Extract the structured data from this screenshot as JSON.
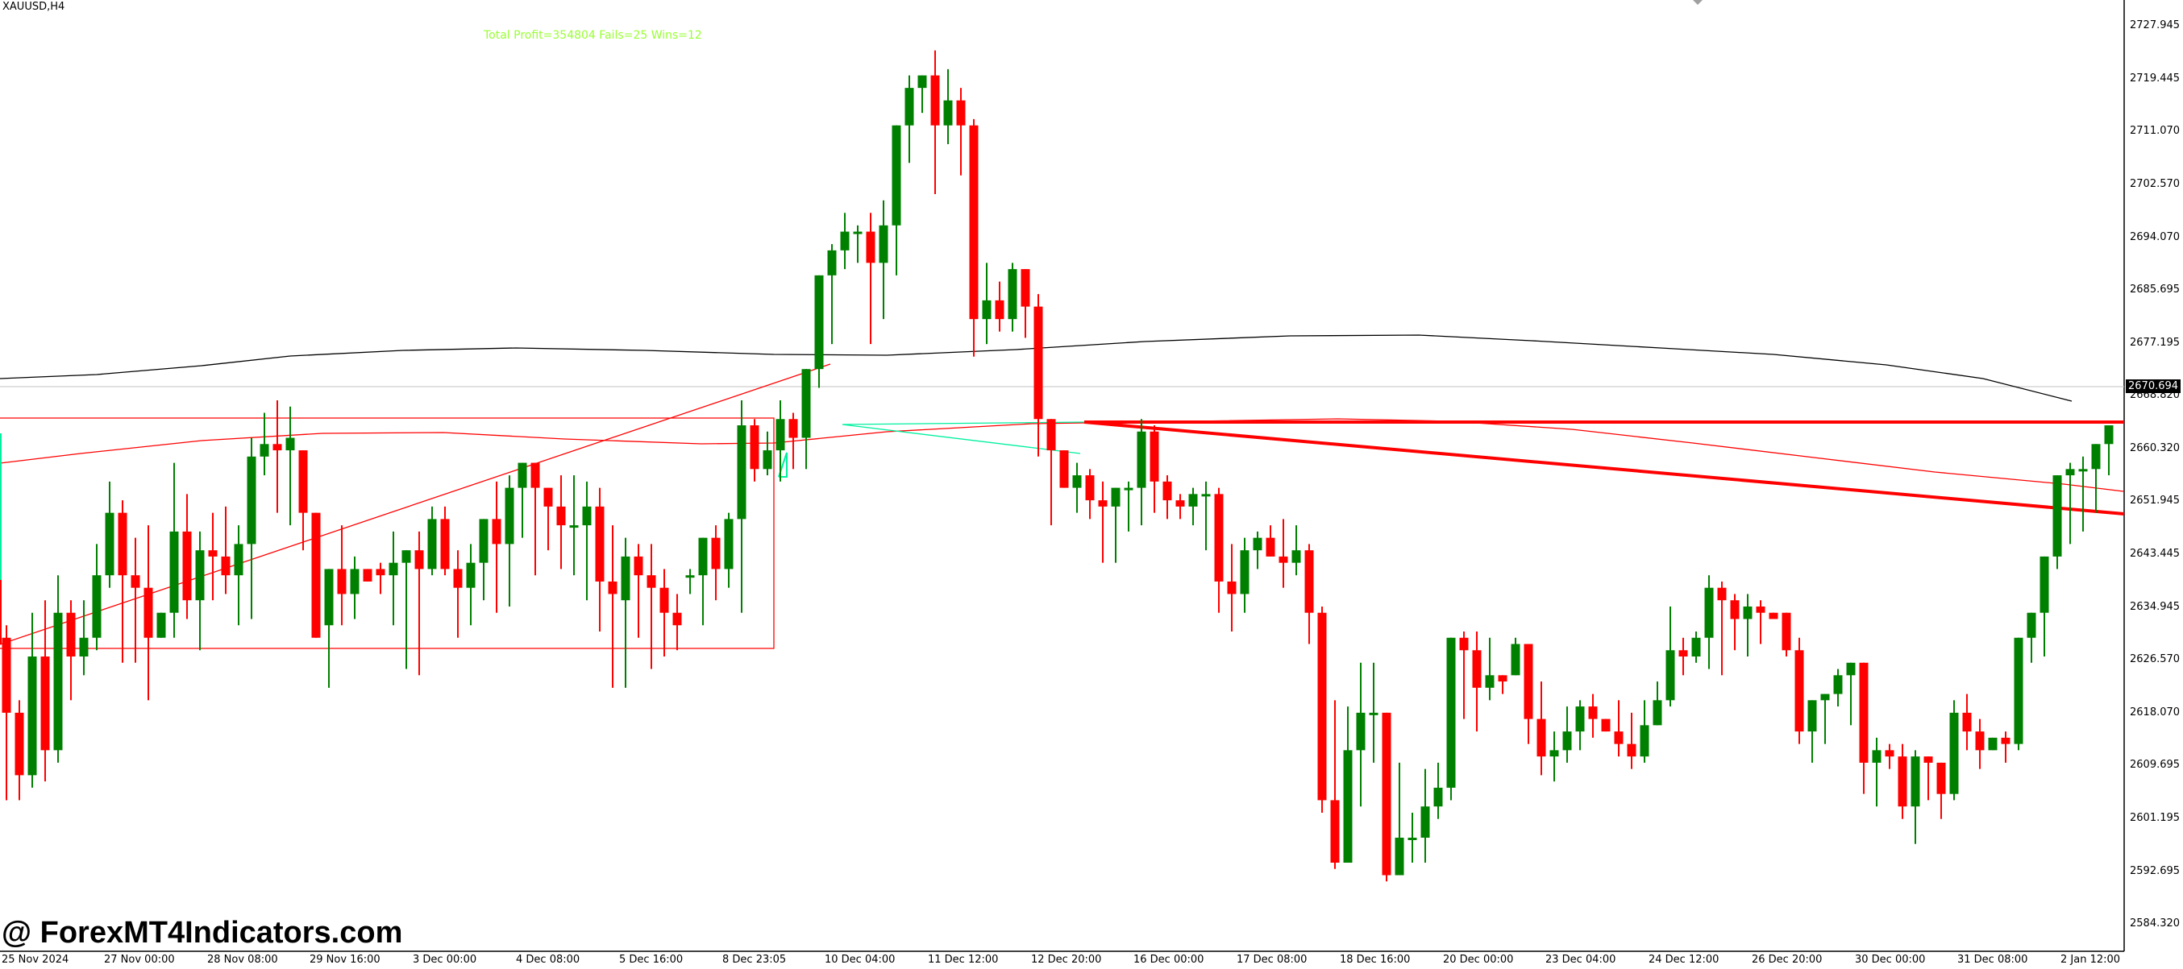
{
  "header": {
    "symbol": "XAUUSD,H4",
    "stats_text": "Total Profit=354804 Fails=25 Wins=12"
  },
  "watermark": "@ ForexMT4Indicators.com",
  "price_axis": {
    "labels": [
      "2727.945",
      "2719.445",
      "2711.070",
      "2702.570",
      "2694.070",
      "2685.695",
      "2677.195",
      "2668.820",
      "2660.320",
      "2651.945",
      "2643.445",
      "2634.945",
      "2626.570",
      "2618.070",
      "2609.695",
      "2601.195",
      "2592.695",
      "2584.320"
    ],
    "current_price": "2670.694"
  },
  "time_axis": {
    "labels": [
      "25 Nov 2024",
      "27 Nov 00:00",
      "28 Nov 08:00",
      "29 Nov 16:00",
      "3 Dec 00:00",
      "4 Dec 08:00",
      "5 Dec 16:00",
      "8 Dec 23:05",
      "10 Dec 04:00",
      "11 Dec 12:00",
      "12 Dec 20:00",
      "16 Dec 00:00",
      "17 Dec 08:00",
      "18 Dec 16:00",
      "20 Dec 00:00",
      "23 Dec 04:00",
      "24 Dec 12:00",
      "26 Dec 20:00",
      "30 Dec 00:00",
      "31 Dec 08:00",
      "2 Jan 12:00"
    ]
  },
  "colors": {
    "bull": "#008000",
    "bear": "#ff0000",
    "ma_slow": "#000000",
    "ma_fast": "#ff0000",
    "cyan": "#00f0a0",
    "stats": "#99ff33",
    "grid_current": "#c0c0c0"
  },
  "chart_data": {
    "type": "candlestick",
    "title": "XAUUSD,H4",
    "annotation": "Total Profit=354804 Fails=25 Wins=12",
    "ylim": [
      2581,
      2733
    ],
    "x_labels": [
      "25 Nov 2024",
      "27 Nov 00:00",
      "28 Nov 08:00",
      "29 Nov 16:00",
      "3 Dec 00:00",
      "4 Dec 08:00",
      "5 Dec 16:00",
      "8 Dec 23:05",
      "10 Dec 04:00",
      "11 Dec 12:00",
      "12 Dec 20:00",
      "16 Dec 00:00",
      "17 Dec 08:00",
      "18 Dec 16:00",
      "20 Dec 00:00",
      "23 Dec 04:00",
      "24 Dec 12:00",
      "26 Dec 20:00",
      "30 Dec 00:00",
      "31 Dec 08:00",
      "2 Jan 12:00"
    ],
    "y_ticks": [
      2727.945,
      2719.445,
      2711.07,
      2702.57,
      2694.07,
      2685.695,
      2677.195,
      2668.82,
      2660.32,
      2651.945,
      2643.445,
      2634.945,
      2626.57,
      2618.07,
      2609.695,
      2601.195,
      2592.695,
      2584.32
    ],
    "current_price": 2670.694,
    "candles_ohlc": [
      [
        2630,
        2632,
        2604,
        2618
      ],
      [
        2618,
        2620,
        2604,
        2608
      ],
      [
        2608,
        2634,
        2606,
        2627
      ],
      [
        2627,
        2636,
        2607,
        2612
      ],
      [
        2612,
        2640,
        2610,
        2634
      ],
      [
        2634,
        2636,
        2620,
        2627
      ],
      [
        2627,
        2636,
        2624,
        2630
      ],
      [
        2630,
        2645,
        2628,
        2640
      ],
      [
        2640,
        2655,
        2638,
        2650
      ],
      [
        2650,
        2652,
        2626,
        2640
      ],
      [
        2640,
        2646,
        2626,
        2638
      ],
      [
        2638,
        2648,
        2620,
        2630
      ],
      [
        2630,
        2632,
        2634,
        2634
      ],
      [
        2634,
        2658,
        2630,
        2647
      ],
      [
        2647,
        2653,
        2633,
        2636
      ],
      [
        2636,
        2647,
        2628,
        2644
      ],
      [
        2644,
        2650,
        2636,
        2643
      ],
      [
        2643,
        2651,
        2637,
        2640
      ],
      [
        2640,
        2648,
        2632,
        2645
      ],
      [
        2645,
        2662,
        2633,
        2659
      ],
      [
        2659,
        2666,
        2656,
        2661
      ],
      [
        2661,
        2668,
        2650,
        2660
      ],
      [
        2660,
        2667,
        2648,
        2662
      ],
      [
        2660,
        2660,
        2644,
        2650
      ],
      [
        2650,
        2648,
        2630,
        2630
      ],
      [
        2632,
        2633,
        2622,
        2641
      ],
      [
        2641,
        2648,
        2632,
        2637
      ],
      [
        2637,
        2643,
        2633,
        2641
      ],
      [
        2641,
        2640,
        2640,
        2639
      ],
      [
        2641,
        2642,
        2637,
        2640
      ],
      [
        2640,
        2647,
        2632,
        2642
      ],
      [
        2642,
        2644,
        2625,
        2644
      ],
      [
        2644,
        2647,
        2624,
        2641
      ],
      [
        2641,
        2651,
        2640,
        2649
      ],
      [
        2649,
        2651,
        2640,
        2641
      ],
      [
        2641,
        2644,
        2630,
        2638
      ],
      [
        2638,
        2645,
        2632,
        2642
      ],
      [
        2642,
        2648,
        2636,
        2649
      ],
      [
        2649,
        2655,
        2634,
        2645
      ],
      [
        2645,
        2656,
        2635,
        2654
      ],
      [
        2654,
        2658,
        2646,
        2658
      ],
      [
        2658,
        2657,
        2640,
        2654
      ],
      [
        2654,
        2654,
        2644,
        2651
      ],
      [
        2651,
        2656,
        2641,
        2648
      ],
      [
        2648,
        2656,
        2640,
        2648
      ],
      [
        2648,
        2655,
        2636,
        2651
      ],
      [
        2651,
        2654,
        2631,
        2639
      ],
      [
        2639,
        2648,
        2622,
        2637
      ],
      [
        2636,
        2646,
        2622,
        2643
      ],
      [
        2643,
        2645,
        2630,
        2640
      ],
      [
        2640,
        2645,
        2625,
        2638
      ],
      [
        2638,
        2641,
        2627,
        2634
      ],
      [
        2634,
        2637,
        2628,
        2632
      ],
      [
        2640,
        2641,
        2637,
        2640
      ],
      [
        2640,
        2646,
        2632,
        2646
      ],
      [
        2646,
        2648,
        2636,
        2641
      ],
      [
        2641,
        2650,
        2638,
        2649
      ],
      [
        2649,
        2668,
        2634,
        2664
      ],
      [
        2664,
        2665,
        2655,
        2657
      ],
      [
        2657,
        2663,
        2656,
        2660
      ],
      [
        2660,
        2668,
        2655,
        2665
      ],
      [
        2665,
        2666,
        2657,
        2662
      ],
      [
        2662,
        2669,
        2657,
        2673
      ],
      [
        2673,
        2688,
        2670,
        2688
      ],
      [
        2688,
        2693,
        2677,
        2692
      ],
      [
        2692,
        2698,
        2689,
        2695
      ],
      [
        2695,
        2696,
        2690,
        2695
      ],
      [
        2695,
        2698,
        2677,
        2690
      ],
      [
        2690,
        2700,
        2681,
        2696
      ],
      [
        2696,
        2712,
        2688,
        2712
      ],
      [
        2712,
        2720,
        2706,
        2718
      ],
      [
        2718,
        2720,
        2714,
        2720
      ],
      [
        2720,
        2724,
        2701,
        2712
      ],
      [
        2712,
        2721,
        2709,
        2716
      ],
      [
        2716,
        2718,
        2704,
        2712
      ],
      [
        2712,
        2713,
        2675,
        2681
      ],
      [
        2681,
        2690,
        2677,
        2684
      ],
      [
        2684,
        2687,
        2679,
        2681
      ],
      [
        2681,
        2690,
        2679,
        2689
      ],
      [
        2689,
        2689,
        2678,
        2683
      ],
      [
        2683,
        2685,
        2659,
        2665
      ],
      [
        2665,
        2665,
        2648,
        2660
      ],
      [
        2660,
        2659,
        2654,
        2654
      ],
      [
        2654,
        2658,
        2650,
        2656
      ],
      [
        2656,
        2657,
        2649,
        2652
      ],
      [
        2652,
        2655,
        2642,
        2651
      ],
      [
        2651,
        2654,
        2642,
        2654
      ],
      [
        2654,
        2655,
        2647,
        2654
      ],
      [
        2654,
        2665,
        2648,
        2663
      ],
      [
        2663,
        2664,
        2650,
        2655
      ],
      [
        2655,
        2656,
        2649,
        2652
      ],
      [
        2652,
        2653,
        2649,
        2651
      ],
      [
        2651,
        2654,
        2648,
        2653
      ],
      [
        2653,
        2655,
        2644,
        2653
      ],
      [
        2653,
        2654,
        2634,
        2639
      ],
      [
        2639,
        2645,
        2631,
        2637
      ],
      [
        2637,
        2646,
        2634,
        2644
      ],
      [
        2644,
        2647,
        2641,
        2646
      ],
      [
        2646,
        2648,
        2644,
        2643
      ],
      [
        2643,
        2649,
        2638,
        2642
      ],
      [
        2642,
        2648,
        2640,
        2644
      ],
      [
        2644,
        2645,
        2629,
        2634
      ],
      [
        2634,
        2635,
        2602,
        2604
      ],
      [
        2604,
        2620,
        2593,
        2594
      ],
      [
        2594,
        2619,
        2594,
        2612
      ],
      [
        2612,
        2626,
        2603,
        2618
      ],
      [
        2618,
        2626,
        2610,
        2618
      ],
      [
        2618,
        2618,
        2591,
        2592
      ],
      [
        2592,
        2610,
        2592,
        2598
      ],
      [
        2598,
        2602,
        2594,
        2598
      ],
      [
        2598,
        2609,
        2594,
        2603
      ],
      [
        2603,
        2610,
        2601,
        2606
      ],
      [
        2606,
        2629,
        2604,
        2630
      ],
      [
        2630,
        2631,
        2617,
        2628
      ],
      [
        2628,
        2631,
        2615,
        2622
      ],
      [
        2622,
        2630,
        2620,
        2624
      ],
      [
        2624,
        2623,
        2621,
        2623
      ],
      [
        2624,
        2630,
        2624,
        2629
      ],
      [
        2629,
        2629,
        2613,
        2617
      ],
      [
        2617,
        2623,
        2608,
        2611
      ],
      [
        2611,
        2615,
        2607,
        2612
      ],
      [
        2612,
        2619,
        2610,
        2615
      ],
      [
        2615,
        2620,
        2612,
        2619
      ],
      [
        2619,
        2621,
        2614,
        2617
      ],
      [
        2617,
        2616,
        2615,
        2615
      ],
      [
        2615,
        2620,
        2611,
        2613
      ],
      [
        2613,
        2618,
        2609,
        2611
      ],
      [
        2611,
        2620,
        2610,
        2616
      ],
      [
        2616,
        2623,
        2616,
        2620
      ],
      [
        2620,
        2635,
        2619,
        2628
      ],
      [
        2628,
        2630,
        2624,
        2627
      ],
      [
        2627,
        2631,
        2626,
        2630
      ],
      [
        2630,
        2640,
        2625,
        2638
      ],
      [
        2638,
        2639,
        2624,
        2636
      ],
      [
        2636,
        2637,
        2628,
        2633
      ],
      [
        2633,
        2637,
        2627,
        2635
      ],
      [
        2635,
        2636,
        2629,
        2634
      ],
      [
        2634,
        2633,
        2633,
        2633
      ],
      [
        2634,
        2634,
        2627,
        2628
      ],
      [
        2628,
        2630,
        2613,
        2615
      ],
      [
        2615,
        2617,
        2610,
        2620
      ],
      [
        2620,
        2621,
        2613,
        2621
      ],
      [
        2621,
        2625,
        2619,
        2624
      ],
      [
        2624,
        2626,
        2616,
        2626
      ],
      [
        2626,
        2626,
        2605,
        2610
      ],
      [
        2610,
        2614,
        2603,
        2612
      ],
      [
        2612,
        2613,
        2609,
        2611
      ],
      [
        2611,
        2613,
        2601,
        2603
      ],
      [
        2603,
        2612,
        2597,
        2611
      ],
      [
        2611,
        2606,
        2604,
        2610
      ],
      [
        2610,
        2610,
        2601,
        2605
      ],
      [
        2605,
        2620,
        2604,
        2618
      ],
      [
        2618,
        2621,
        2612,
        2615
      ],
      [
        2615,
        2617,
        2609,
        2612
      ],
      [
        2612,
        2614,
        2613,
        2614
      ],
      [
        2614,
        2615,
        2610,
        2613
      ],
      [
        2613,
        2628,
        2612,
        2630
      ],
      [
        2630,
        2634,
        2626,
        2634
      ],
      [
        2634,
        2638,
        2627,
        2643
      ],
      [
        2643,
        2655,
        2641,
        2656
      ],
      [
        2656,
        2658,
        2645,
        2657
      ],
      [
        2657,
        2659,
        2647,
        2657
      ],
      [
        2657,
        2661,
        2650,
        2661
      ],
      [
        2661,
        2664,
        2656,
        2664
      ],
      [
        2664,
        2664,
        2651,
        2654
      ]
    ],
    "lines": [
      {
        "name": "slow MA (black)",
        "desc": "rising from ~2671 on left to ~2678 mid, then declining to ~2668 right"
      },
      {
        "name": "fast MA (red thin)",
        "desc": "~2662 left rising to ~2665, flat, then falling to ~2654 right"
      },
      {
        "name": "horizontal resistance (red thick)",
        "value": 2664.5,
        "from": "12 Dec",
        "to": "right edge"
      },
      {
        "name": "descending trendline (red thick)",
        "from": [
          2664.5,
          "12 Dec"
        ],
        "to": [
          2651.5,
          "2 Jan"
        ]
      },
      {
        "name": "box (red thin)",
        "top": 2660,
        "bottom": 2628.5,
        "from": "25 Nov",
        "to": "8 Dec"
      },
      {
        "name": "ascending trendline (red thin)",
        "from": [
          2629,
          "25 Nov"
        ],
        "to": [
          2673,
          "10 Dec"
        ]
      },
      {
        "name": "cyan lines",
        "desc": "horizontal at ~2664 and descending to ~2657 from 10 Dec to 12 Dec"
      }
    ]
  }
}
